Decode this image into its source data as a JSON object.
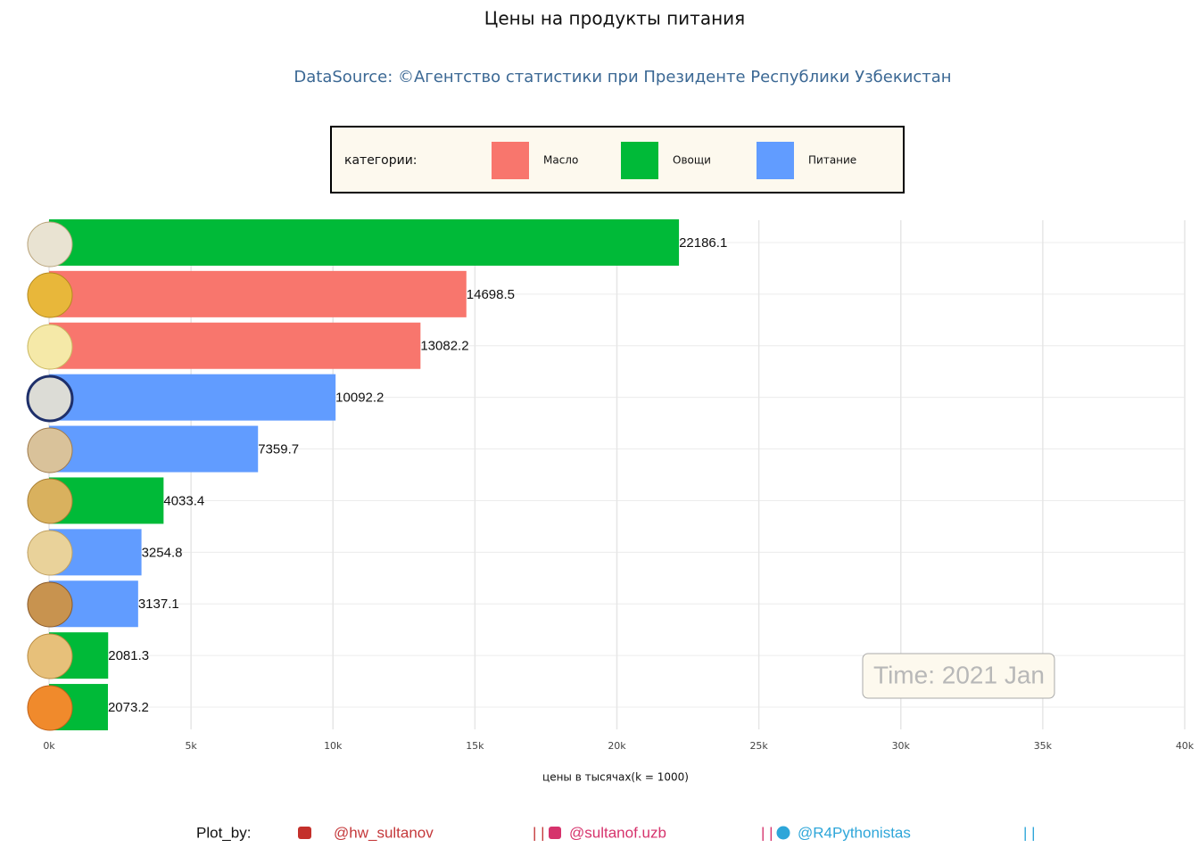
{
  "chart_data": {
    "type": "barh",
    "title": "Цены на продукты питания",
    "subtitle": "DataSource: ©Агентство статистики при Президенте Республики Узбекистан",
    "legend_title": "категории:",
    "categories": [
      null,
      null,
      null,
      null,
      null,
      null,
      null,
      null,
      null,
      null
    ],
    "series": [
      {
        "name": "Масло",
        "color": "#f8766d",
        "values": [
          null,
          14698.5,
          13082.2,
          null,
          null,
          null,
          null,
          null,
          null,
          null
        ]
      },
      {
        "name": "Овощи",
        "color": "#00ba38",
        "values": [
          22186.1,
          null,
          null,
          null,
          null,
          4033.4,
          null,
          null,
          2081.3,
          2073.2
        ]
      },
      {
        "name": "Питание",
        "color": "#619cff",
        "values": [
          null,
          null,
          null,
          10092.2,
          7359.7,
          null,
          3254.8,
          3137.1,
          null,
          null
        ]
      }
    ],
    "xlabel": "цены в тысячах(k = 1000)",
    "xlim": [
      0,
      40000
    ],
    "xticks": [
      {
        "value": 0,
        "label": "0k"
      },
      {
        "value": 5000,
        "label": "5k"
      },
      {
        "value": 10000,
        "label": "10k"
      },
      {
        "value": 15000,
        "label": "15k"
      },
      {
        "value": 20000,
        "label": "20k"
      },
      {
        "value": 25000,
        "label": "25k"
      },
      {
        "value": 30000,
        "label": "30k"
      },
      {
        "value": 35000,
        "label": "35k"
      },
      {
        "value": 40000,
        "label": "40k"
      }
    ],
    "grid": true,
    "annotation": "Time: 2021 Jan"
  },
  "footer": {
    "label": "Plot_by:",
    "handles": [
      "@hw_sultanov",
      "@sultanof.uzb",
      "@R4Pythonistas"
    ],
    "separator": "| |"
  }
}
